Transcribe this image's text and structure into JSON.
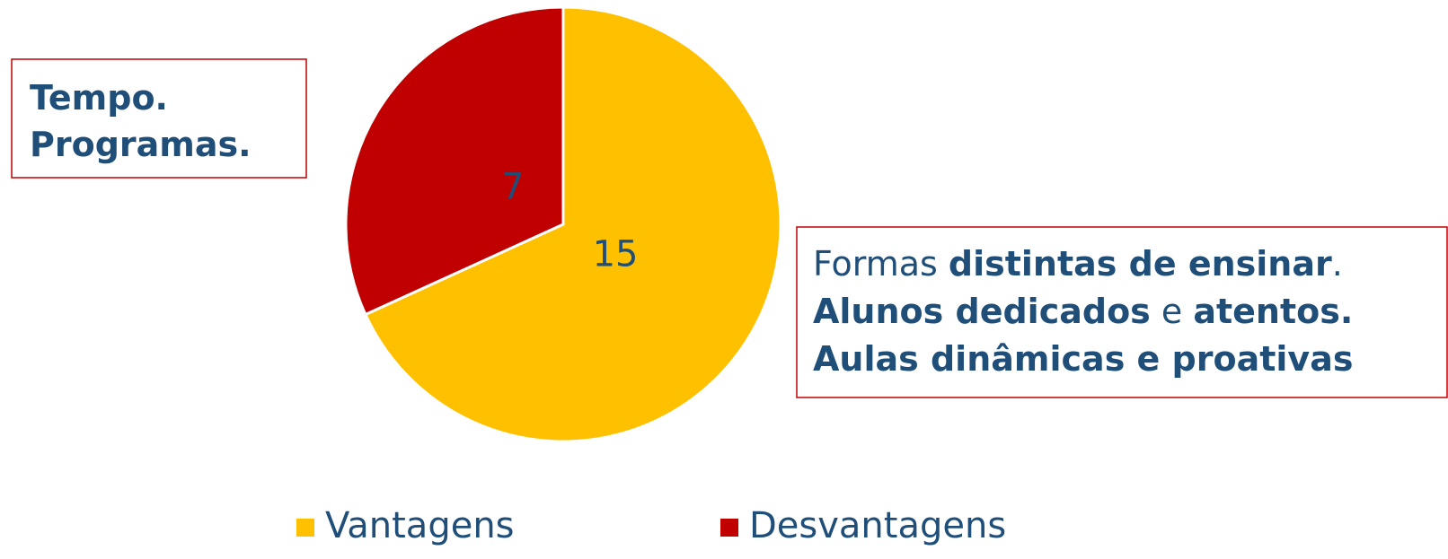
{
  "chart_data": {
    "type": "pie",
    "categories": [
      "Vantagens",
      "Desvantagens"
    ],
    "values": [
      15,
      7
    ],
    "colors": [
      "#FFC000",
      "#C00000"
    ],
    "start_angle": 0,
    "direction": "clockwise",
    "annotations": [
      {
        "lines": [
          [
            {
              "text": "Tempo.",
              "bold": true
            }
          ],
          [
            {
              "text": "Programas.",
              "bold": true
            }
          ]
        ]
      },
      {
        "lines": [
          [
            {
              "text": "Formas ",
              "bold": false
            },
            {
              "text": "distintas de ensinar",
              "bold": true
            },
            {
              "text": ".",
              "bold": false
            }
          ],
          [
            {
              "text": "Alunos dedicados",
              "bold": true
            },
            {
              "text": " e ",
              "bold": false
            },
            {
              "text": "atentos.",
              "bold": true
            }
          ],
          [
            {
              "text": "Aulas dinâmicas e proativas",
              "bold": true
            }
          ]
        ]
      }
    ]
  }
}
